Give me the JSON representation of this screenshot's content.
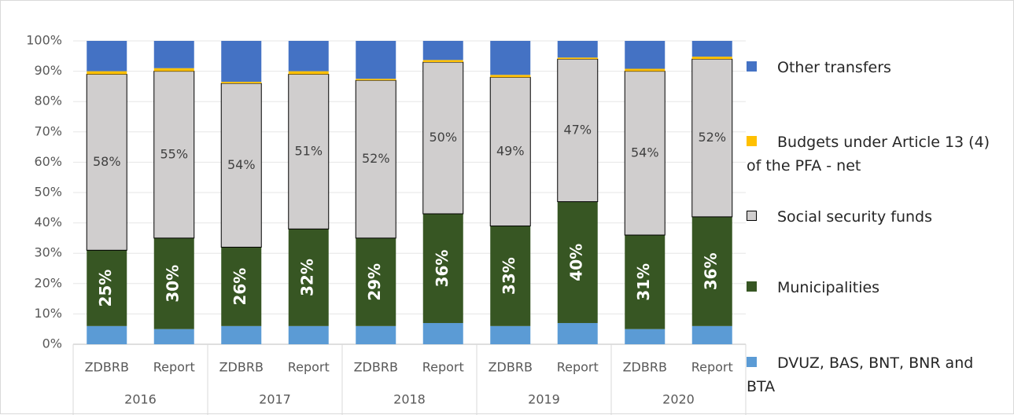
{
  "chart_data": {
    "type": "stacked_bar",
    "categories": [
      "ZDBRB",
      "Report",
      "ZDBRB",
      "Report",
      "ZDBRB",
      "Report",
      "ZDBRB",
      "Report",
      "ZDBRB",
      "Report"
    ],
    "x_groups": [
      "2016",
      "2017",
      "2018",
      "2019",
      "2020"
    ],
    "ylim": [
      0,
      100
    ],
    "yticks": [
      {
        "value": 0,
        "label": "0%"
      },
      {
        "value": 10,
        "label": "10%"
      },
      {
        "value": 20,
        "label": "20%"
      },
      {
        "value": 30,
        "label": "30%"
      },
      {
        "value": 40,
        "label": "40%"
      },
      {
        "value": 50,
        "label": "50%"
      },
      {
        "value": 60,
        "label": "60%"
      },
      {
        "value": 70,
        "label": "70%"
      },
      {
        "value": 80,
        "label": "80%"
      },
      {
        "value": 90,
        "label": "90%"
      },
      {
        "value": 100,
        "label": "100%"
      }
    ],
    "grid": true,
    "legend": "right",
    "series": [
      {
        "name": "DVUZ, BAS, BNT, BNR and BTA",
        "color": "#5b9bd5",
        "values": [
          6,
          5,
          6,
          6,
          6,
          7,
          6,
          7,
          5,
          6
        ]
      },
      {
        "name": "Municipalities",
        "color": "#375623",
        "values": [
          25,
          30,
          26,
          32,
          29,
          36,
          33,
          40,
          31,
          36
        ],
        "value_labels": [
          "25%",
          "30%",
          "26%",
          "32%",
          "29%",
          "36%",
          "33%",
          "40%",
          "31%",
          "36%"
        ]
      },
      {
        "name": "Social security funds",
        "color": "#d0cece",
        "values": [
          58,
          55,
          54,
          51,
          52,
          50,
          49,
          47,
          54,
          52
        ],
        "value_labels": [
          "58%",
          "55%",
          "54%",
          "51%",
          "52%",
          "50%",
          "49%",
          "47%",
          "54%",
          "52%"
        ]
      },
      {
        "name": "Budgets under Article 13 (4) of the PFA - net",
        "color": "#ffc000",
        "values": [
          1,
          1,
          0.5,
          1,
          0.5,
          0.7,
          0.8,
          0.5,
          0.8,
          0.8
        ]
      },
      {
        "name": "Other transfers",
        "color": "#4472c4",
        "values": [
          10,
          9,
          13.5,
          10,
          12.5,
          6.3,
          11.2,
          5.5,
          9.2,
          5.2
        ]
      }
    ]
  }
}
